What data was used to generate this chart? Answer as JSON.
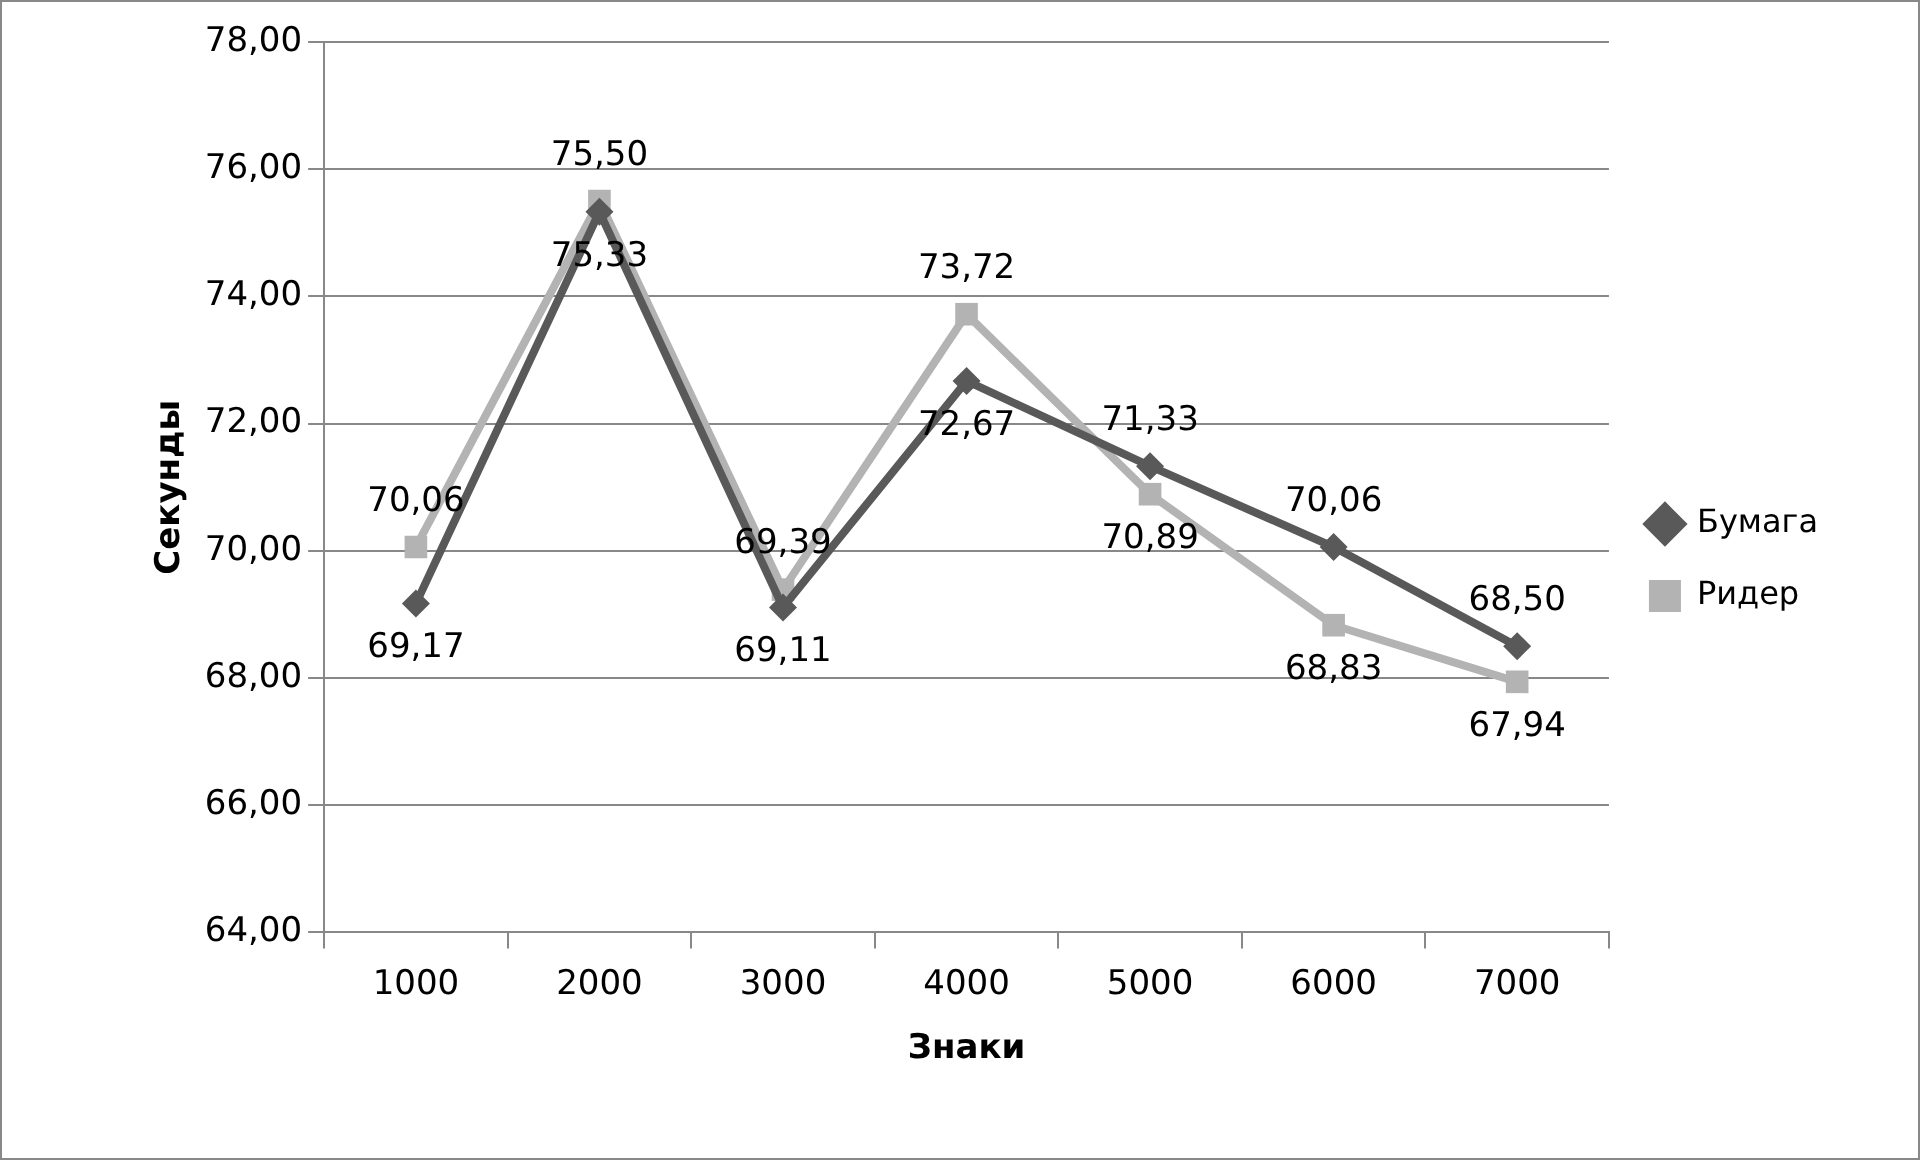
{
  "chart_data": {
    "type": "line",
    "xlabel": "Знаки",
    "ylabel": "Секунды",
    "categories": [
      "1000",
      "2000",
      "3000",
      "4000",
      "5000",
      "6000",
      "7000"
    ],
    "series": [
      {
        "name": "Бумага",
        "color": "#595959",
        "marker": "diamond",
        "values": [
          69.17,
          75.33,
          69.11,
          72.67,
          71.33,
          70.06,
          68.5
        ],
        "value_labels": [
          "69,17",
          "75,33",
          "69,11",
          "72,67",
          "71,33",
          "70,06",
          "68,50"
        ]
      },
      {
        "name": "Ридер",
        "color": "#b3b3b3",
        "marker": "square",
        "values": [
          70.06,
          75.5,
          69.39,
          73.72,
          70.89,
          68.83,
          67.94
        ],
        "value_labels": [
          "70,06",
          "75,50",
          "69,39",
          "73,72",
          "70,89",
          "68,83",
          "67,94"
        ]
      }
    ],
    "ylim": [
      64,
      78
    ],
    "yticks": [
      {
        "value": 64,
        "label": "64,00"
      },
      {
        "value": 66,
        "label": "66,00"
      },
      {
        "value": 68,
        "label": "68,00"
      },
      {
        "value": 70,
        "label": "70,00"
      },
      {
        "value": 72,
        "label": "72,00"
      },
      {
        "value": 74,
        "label": "74,00"
      },
      {
        "value": 76,
        "label": "76,00"
      },
      {
        "value": 78,
        "label": "78,00"
      }
    ],
    "grid": "y",
    "legend": "right"
  }
}
